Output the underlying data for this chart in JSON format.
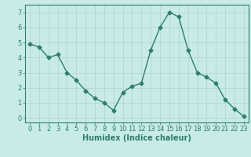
{
  "x": [
    0,
    1,
    2,
    3,
    4,
    5,
    6,
    7,
    8,
    9,
    10,
    11,
    12,
    13,
    14,
    15,
    16,
    17,
    18,
    19,
    20,
    21,
    22,
    23
  ],
  "y": [
    4.9,
    4.7,
    4.0,
    4.2,
    3.0,
    2.5,
    1.8,
    1.3,
    1.0,
    0.5,
    1.7,
    2.1,
    2.3,
    4.5,
    6.0,
    7.0,
    6.7,
    4.5,
    3.0,
    2.7,
    2.3,
    1.2,
    0.6,
    0.1
  ],
  "line_color": "#2e7d6e",
  "marker": "D",
  "marker_size": 2.5,
  "bg_color": "#c8ebe8",
  "grid_color": "#b0d4d0",
  "xlabel": "Humidex (Indice chaleur)",
  "xlabel_fontsize": 7,
  "tick_fontsize": 6,
  "ylim": [
    -0.3,
    7.5
  ],
  "xlim": [
    -0.5,
    23.5
  ],
  "yticks": [
    0,
    1,
    2,
    3,
    4,
    5,
    6,
    7
  ],
  "xticks": [
    0,
    1,
    2,
    3,
    4,
    5,
    6,
    7,
    8,
    9,
    10,
    11,
    12,
    13,
    14,
    15,
    16,
    17,
    18,
    19,
    20,
    21,
    22,
    23
  ],
  "line_width": 1.0
}
